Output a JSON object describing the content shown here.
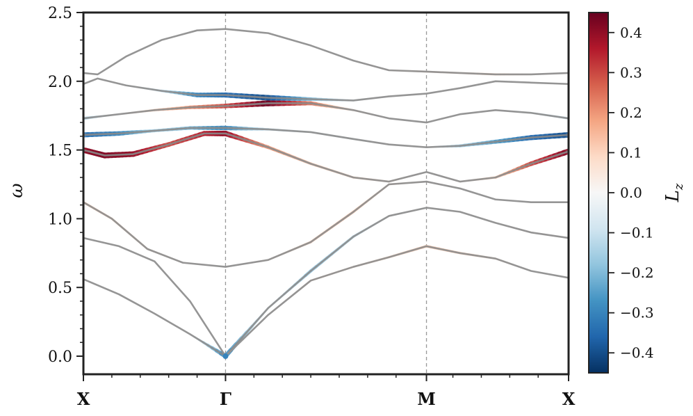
{
  "chart_data": {
    "type": "line",
    "ylabel": "ω",
    "xticks": [
      "X",
      "Γ",
      "M",
      "X"
    ],
    "ylim": [
      0.0,
      2.5
    ],
    "yticks": [
      "0.0",
      "0.5",
      "1.0",
      "1.5",
      "2.0",
      "2.5"
    ],
    "vlines_at": [
      "Γ",
      "M"
    ],
    "colorbar": {
      "label": "L_z",
      "range": [
        -0.45,
        0.45
      ],
      "ticks": [
        "−0.4",
        "−0.3",
        "−0.2",
        "−0.1",
        "0.0",
        "0.1",
        "0.2",
        "0.3",
        "0.4"
      ],
      "tick_values": [
        -0.4,
        -0.3,
        -0.2,
        -0.1,
        0.0,
        0.1,
        0.2,
        0.3,
        0.4
      ],
      "colormap": "RdBu_r",
      "colors": [
        "#053061",
        "#2166ac",
        "#4393c3",
        "#92c5de",
        "#d1e5f0",
        "#f7f7f7",
        "#fddbc7",
        "#f4a582",
        "#d6604d",
        "#b2182b",
        "#67001f"
      ]
    },
    "x_path_positions": [
      0,
      1,
      2.414,
      3.414
    ],
    "series": [
      {
        "x": [
          0,
          0.25,
          0.5,
          0.75,
          1.0
        ],
        "y": [
          0.56,
          0.45,
          0.31,
          0.16,
          0.0
        ],
        "lz": [
          0,
          0,
          0,
          0,
          -0.3
        ]
      },
      {
        "x": [
          0,
          0.25,
          0.5,
          0.75,
          1.0
        ],
        "y": [
          0.86,
          0.8,
          0.69,
          0.4,
          0.0
        ],
        "lz": [
          0,
          0,
          0,
          0,
          0
        ]
      },
      {
        "x": [
          0,
          0.2,
          0.45,
          0.7,
          1.0,
          1.3,
          1.6,
          1.9,
          2.15,
          2.414,
          2.65,
          2.9,
          3.15,
          3.414
        ],
        "y": [
          1.12,
          1.0,
          0.78,
          0.68,
          0.65,
          0.7,
          0.83,
          1.05,
          1.25,
          1.27,
          1.22,
          1.14,
          1.12,
          1.12
        ],
        "lz": [
          0.1,
          0.08,
          0.05,
          0.02,
          0,
          0.03,
          0.1,
          0.12,
          0.05,
          0.02,
          0,
          0,
          0,
          0
        ]
      },
      {
        "x": [
          1.0,
          1.3,
          1.6,
          1.9,
          2.15,
          2.414,
          2.65,
          2.9,
          3.15,
          3.414
        ],
        "y": [
          0.0,
          0.35,
          0.62,
          0.87,
          1.02,
          1.08,
          1.05,
          0.97,
          0.9,
          0.86
        ],
        "lz": [
          -0.3,
          -0.05,
          -0.18,
          -0.12,
          -0.03,
          0,
          0,
          0,
          0.02,
          0
        ]
      },
      {
        "x": [
          1.0,
          1.3,
          1.6,
          1.9,
          2.15,
          2.414,
          2.65,
          2.9,
          3.15,
          3.414
        ],
        "y": [
          0.0,
          0.3,
          0.55,
          0.65,
          0.72,
          0.8,
          0.75,
          0.71,
          0.62,
          0.57
        ],
        "lz": [
          0,
          0,
          0.05,
          0.05,
          0.08,
          0.12,
          0.1,
          0.05,
          0,
          0
        ]
      },
      {
        "x": [
          0,
          0.15,
          0.35,
          0.6,
          0.85,
          1.0,
          1.3,
          1.6,
          1.9,
          2.15,
          2.414,
          2.65,
          2.9,
          3.15,
          3.414
        ],
        "y": [
          1.5,
          1.46,
          1.47,
          1.54,
          1.62,
          1.62,
          1.52,
          1.4,
          1.3,
          1.27,
          1.34,
          1.27,
          1.3,
          1.4,
          1.49
        ],
        "lz": [
          0.4,
          0.42,
          0.4,
          0.3,
          0.35,
          0.4,
          0.2,
          0.12,
          0.08,
          0.05,
          0,
          0.02,
          0.1,
          0.3,
          0.42
        ]
      },
      {
        "x": [
          0,
          0.25,
          0.5,
          0.75,
          1.0,
          1.3,
          1.6,
          1.9,
          2.15,
          2.414,
          2.65,
          2.9,
          3.15,
          3.414
        ],
        "y": [
          1.61,
          1.62,
          1.64,
          1.66,
          1.66,
          1.65,
          1.63,
          1.58,
          1.54,
          1.52,
          1.53,
          1.56,
          1.59,
          1.61
        ],
        "lz": [
          -0.35,
          -0.3,
          -0.15,
          -0.2,
          -0.3,
          -0.1,
          -0.05,
          -0.05,
          0,
          0,
          -0.15,
          -0.25,
          -0.35,
          -0.4
        ]
      },
      {
        "x": [
          0,
          0.25,
          0.5,
          0.75,
          1.0,
          1.3,
          1.6,
          1.9,
          2.15,
          2.414,
          2.65,
          2.9,
          3.15,
          3.414
        ],
        "y": [
          1.73,
          1.76,
          1.79,
          1.81,
          1.82,
          1.84,
          1.84,
          1.79,
          1.73,
          1.7,
          1.76,
          1.79,
          1.77,
          1.73
        ],
        "lz": [
          -0.15,
          0,
          0.1,
          0.2,
          0.3,
          0.45,
          0.25,
          0.05,
          0,
          0,
          0,
          0,
          -0.05,
          -0.1
        ]
      },
      {
        "x": [
          0,
          0.1,
          0.3,
          0.55,
          0.8,
          1.0,
          1.3,
          1.6,
          1.9,
          2.15,
          2.414,
          2.65,
          2.9,
          3.15,
          3.414
        ],
        "y": [
          1.98,
          2.02,
          1.97,
          1.93,
          1.9,
          1.9,
          1.88,
          1.87,
          1.86,
          1.89,
          1.91,
          1.95,
          2.0,
          1.99,
          1.98
        ],
        "lz": [
          0,
          0,
          0,
          -0.1,
          -0.3,
          -0.35,
          -0.4,
          -0.2,
          -0.05,
          0,
          0,
          0,
          0,
          0,
          0
        ]
      },
      {
        "x": [
          0,
          0.1,
          0.3,
          0.55,
          0.8,
          1.0,
          1.3,
          1.6,
          1.9,
          2.15,
          2.414,
          2.65,
          2.9,
          3.15,
          3.414
        ],
        "y": [
          2.06,
          2.05,
          2.18,
          2.3,
          2.37,
          2.38,
          2.35,
          2.26,
          2.15,
          2.08,
          2.07,
          2.06,
          2.05,
          2.05,
          2.06
        ],
        "lz": [
          0,
          0,
          0,
          0,
          0,
          0,
          0,
          0,
          0,
          0.02,
          0.05,
          0.05,
          0.08,
          0.03,
          0
        ]
      }
    ]
  }
}
